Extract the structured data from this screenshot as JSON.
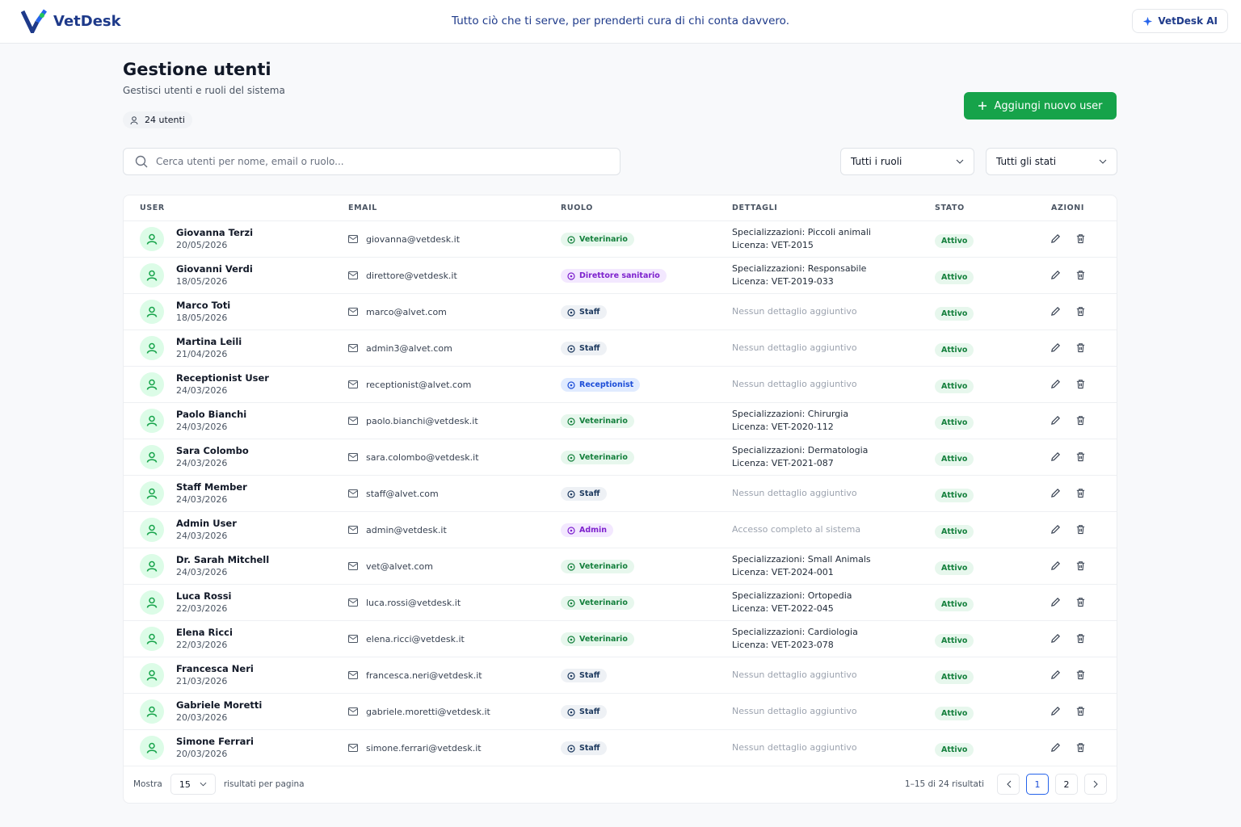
{
  "header": {
    "brand": "VetDesk",
    "tagline": "Tutto ciò che ti serve, per prenderti cura di chi conta davvero.",
    "ai_button": "VetDesk AI"
  },
  "page": {
    "title": "Gestione utenti",
    "subtitle": "Gestisci utenti e ruoli del sistema",
    "count": "24 utenti",
    "add_button": "Aggiungi nuovo user"
  },
  "filters": {
    "search_placeholder": "Cerca utenti per nome, email o ruolo...",
    "role": "Tutti i ruoli",
    "status": "Tutti gli stati"
  },
  "table": {
    "columns": [
      "USER",
      "EMAIL",
      "RUOLO",
      "DETTAGLI",
      "STATO",
      "AZIONI"
    ],
    "rows": [
      {
        "name": "Giovanna Terzi",
        "date": "20/05/2026",
        "email": "giovanna@vetdesk.it",
        "role": "Veterinario",
        "role_color": "green",
        "details": [
          "Specializzazioni: Piccoli animali",
          "Licenza: VET-2015"
        ],
        "status": "Attivo"
      },
      {
        "name": "Giovanni Verdi",
        "date": "18/05/2026",
        "email": "direttore@vetdesk.it",
        "role": "Direttore sanitario",
        "role_color": "purple",
        "details": [
          "Specializzazioni: Responsabile",
          "Licenza: VET-2019-033"
        ],
        "status": "Attivo"
      },
      {
        "name": "Marco Toti",
        "date": "18/05/2026",
        "email": "marco@alvet.com",
        "role": "Staff",
        "role_color": "gray",
        "details": [
          "Nessun dettaglio aggiuntivo"
        ],
        "status": "Attivo"
      },
      {
        "name": "Martina Leili",
        "date": "21/04/2026",
        "email": "admin3@alvet.com",
        "role": "Staff",
        "role_color": "gray",
        "details": [
          "Nessun dettaglio aggiuntivo"
        ],
        "status": "Attivo"
      },
      {
        "name": "Receptionist User",
        "date": "24/03/2026",
        "email": "receptionist@alvet.com",
        "role": "Receptionist",
        "role_color": "blue",
        "details": [
          "Nessun dettaglio aggiuntivo"
        ],
        "status": "Attivo"
      },
      {
        "name": "Paolo Bianchi",
        "date": "24/03/2026",
        "email": "paolo.bianchi@vetdesk.it",
        "role": "Veterinario",
        "role_color": "green",
        "details": [
          "Specializzazioni: Chirurgia",
          "Licenza: VET-2020-112"
        ],
        "status": "Attivo"
      },
      {
        "name": "Sara Colombo",
        "date": "24/03/2026",
        "email": "sara.colombo@vetdesk.it",
        "role": "Veterinario",
        "role_color": "green",
        "details": [
          "Specializzazioni: Dermatologia",
          "Licenza: VET-2021-087"
        ],
        "status": "Attivo"
      },
      {
        "name": "Staff Member",
        "date": "24/03/2026",
        "email": "staff@alvet.com",
        "role": "Staff",
        "role_color": "gray",
        "details": [
          "Nessun dettaglio aggiuntivo"
        ],
        "status": "Attivo"
      },
      {
        "name": "Admin User",
        "date": "24/03/2026",
        "email": "admin@vetdesk.it",
        "role": "Admin",
        "role_color": "purple",
        "details": [
          "Accesso completo al sistema"
        ],
        "status": "Attivo"
      },
      {
        "name": "Dr. Sarah Mitchell",
        "date": "24/03/2026",
        "email": "vet@alvet.com",
        "role": "Veterinario",
        "role_color": "green",
        "details": [
          "Specializzazioni: Small Animals",
          "Licenza: VET-2024-001"
        ],
        "status": "Attivo"
      },
      {
        "name": "Luca Rossi",
        "date": "22/03/2026",
        "email": "luca.rossi@vetdesk.it",
        "role": "Veterinario",
        "role_color": "green",
        "details": [
          "Specializzazioni: Ortopedia",
          "Licenza: VET-2022-045"
        ],
        "status": "Attivo"
      },
      {
        "name": "Elena Ricci",
        "date": "22/03/2026",
        "email": "elena.ricci@vetdesk.it",
        "role": "Veterinario",
        "role_color": "green",
        "details": [
          "Specializzazioni: Cardiologia",
          "Licenza: VET-2023-078"
        ],
        "status": "Attivo"
      },
      {
        "name": "Francesca Neri",
        "date": "21/03/2026",
        "email": "francesca.neri@vetdesk.it",
        "role": "Staff",
        "role_color": "gray",
        "details": [
          "Nessun dettaglio aggiuntivo"
        ],
        "status": "Attivo"
      },
      {
        "name": "Gabriele Moretti",
        "date": "20/03/2026",
        "email": "gabriele.moretti@vetdesk.it",
        "role": "Staff",
        "role_color": "gray",
        "details": [
          "Nessun dettaglio aggiuntivo"
        ],
        "status": "Attivo"
      },
      {
        "name": "Simone Ferrari",
        "date": "20/03/2026",
        "email": "simone.ferrari@vetdesk.it",
        "role": "Staff",
        "role_color": "gray",
        "details": [
          "Nessun dettaglio aggiuntivo"
        ],
        "status": "Attivo"
      }
    ]
  },
  "footer": {
    "show": "Mostra",
    "per_page": 15,
    "per_page_label": "risultati per pagina",
    "range": "1–15 di 24 risultati",
    "pages": [
      1,
      2
    ]
  }
}
